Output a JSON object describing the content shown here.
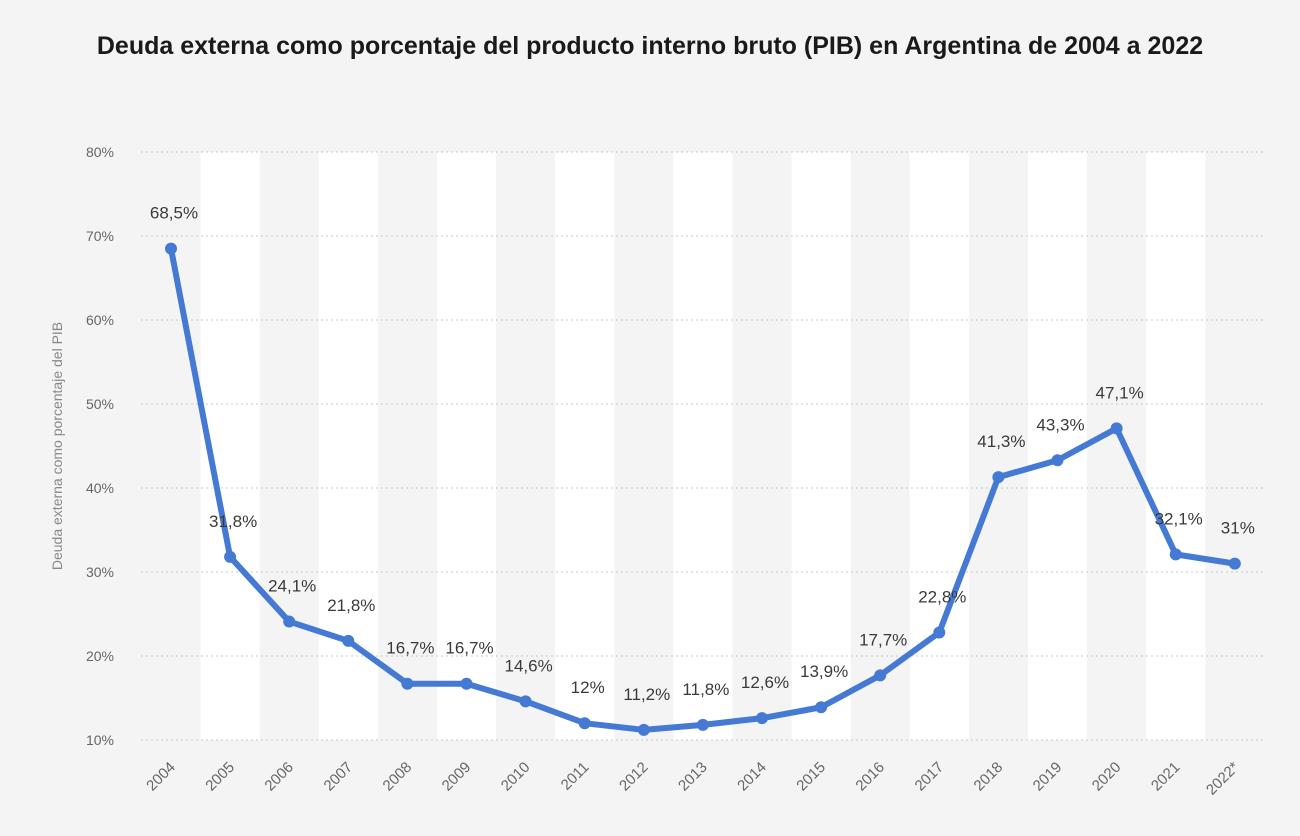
{
  "chart_data": {
    "type": "line",
    "title": "Deuda externa como porcentaje del producto interno bruto (PIB) en Argentina de 2004 a 2022",
    "xlabel": "",
    "ylabel": "Deuda externa como porcentaje del PIB",
    "categories": [
      "2004",
      "2005",
      "2006",
      "2007",
      "2008",
      "2009",
      "2010",
      "2011",
      "2012",
      "2013",
      "2014",
      "2015",
      "2016",
      "2017",
      "2018",
      "2019",
      "2020",
      "2021",
      "2022*"
    ],
    "series": [
      {
        "values": [
          68.5,
          31.8,
          24.1,
          21.8,
          16.7,
          16.7,
          14.6,
          12,
          11.2,
          11.8,
          12.6,
          13.9,
          17.7,
          22.8,
          41.3,
          43.3,
          47.1,
          32.1,
          31
        ],
        "labels": [
          "68,5%",
          "31,8%",
          "24,1%",
          "21,8%",
          "16,7%",
          "16,7%",
          "14,6%",
          "12%",
          "11,2%",
          "11,8%",
          "12,6%",
          "13,9%",
          "17,7%",
          "22,8%",
          "41,3%",
          "43,3%",
          "47,1%",
          "32,1%",
          "31%"
        ]
      }
    ],
    "ylim": [
      10,
      80
    ],
    "yticks": [
      10,
      20,
      30,
      40,
      50,
      60,
      70,
      80
    ],
    "ytick_labels": [
      "10%",
      "20%",
      "30%",
      "40%",
      "50%",
      "60%",
      "70%",
      "80%"
    ],
    "grid": true,
    "colors": {
      "line": "#4479d4",
      "band": "#ffffff",
      "grid": "#c8c8c8",
      "tick_text": "#666666",
      "label_text": "#3a3a3a"
    }
  }
}
